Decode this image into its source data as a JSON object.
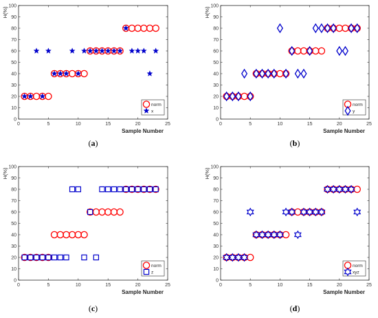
{
  "chart_data": [
    {
      "type": "scatter",
      "caption_letter": "a",
      "xlabel": "Sample Number",
      "ylabel": "H(%)",
      "xlim": [
        0,
        25
      ],
      "ylim": [
        0,
        100
      ],
      "xticks": [
        0,
        5,
        10,
        15,
        20,
        25
      ],
      "yticks": [
        0,
        10,
        20,
        30,
        40,
        50,
        60,
        70,
        80,
        90,
        100
      ],
      "legend_position": "bottom-right",
      "grid": false,
      "series": [
        {
          "name": "norm",
          "marker": "circle",
          "color": "#ff0000",
          "x": [
            1,
            2,
            3,
            4,
            5,
            6,
            7,
            8,
            9,
            10,
            11,
            12,
            13,
            14,
            15,
            16,
            17,
            18,
            19,
            20,
            21,
            22,
            23
          ],
          "y": [
            20,
            20,
            20,
            20,
            20,
            40,
            40,
            40,
            40,
            40,
            40,
            60,
            60,
            60,
            60,
            60,
            60,
            80,
            80,
            80,
            80,
            80,
            80
          ]
        },
        {
          "name": "x",
          "marker": "star",
          "color": "#0000cc",
          "x": [
            1,
            2,
            3,
            4,
            5,
            6,
            7,
            8,
            9,
            10,
            11,
            12,
            13,
            14,
            15,
            16,
            17,
            18,
            19,
            20,
            21,
            22,
            23
          ],
          "y": [
            20,
            20,
            60,
            20,
            60,
            40,
            40,
            40,
            60,
            40,
            60,
            60,
            60,
            60,
            60,
            60,
            60,
            80,
            60,
            60,
            60,
            40,
            60
          ]
        }
      ]
    },
    {
      "type": "scatter",
      "caption_letter": "b",
      "xlabel": "Sample Number",
      "ylabel": "H(%)",
      "xlim": [
        0,
        25
      ],
      "ylim": [
        0,
        100
      ],
      "xticks": [
        0,
        5,
        10,
        15,
        20,
        25
      ],
      "yticks": [
        0,
        10,
        20,
        30,
        40,
        50,
        60,
        70,
        80,
        90,
        100
      ],
      "legend_position": "bottom-right",
      "grid": false,
      "series": [
        {
          "name": "norm",
          "marker": "circle",
          "color": "#ff0000",
          "x": [
            1,
            2,
            3,
            4,
            5,
            6,
            7,
            8,
            9,
            10,
            11,
            12,
            13,
            14,
            15,
            16,
            17,
            18,
            19,
            20,
            21,
            22,
            23
          ],
          "y": [
            20,
            20,
            20,
            20,
            20,
            40,
            40,
            40,
            40,
            40,
            40,
            60,
            60,
            60,
            60,
            60,
            60,
            80,
            80,
            80,
            80,
            80,
            80
          ]
        },
        {
          "name": "y",
          "marker": "diamond",
          "color": "#0000cc",
          "x": [
            1,
            2,
            3,
            4,
            5,
            6,
            7,
            8,
            9,
            10,
            11,
            12,
            13,
            14,
            15,
            16,
            17,
            18,
            19,
            20,
            21,
            22,
            23
          ],
          "y": [
            20,
            20,
            20,
            40,
            20,
            40,
            40,
            40,
            40,
            80,
            40,
            60,
            40,
            40,
            60,
            80,
            80,
            80,
            80,
            60,
            60,
            80,
            80
          ]
        }
      ]
    },
    {
      "type": "scatter",
      "caption_letter": "c",
      "xlabel": "Sample Number",
      "ylabel": "H(%)",
      "xlim": [
        0,
        25
      ],
      "ylim": [
        0,
        100
      ],
      "xticks": [
        0,
        5,
        10,
        15,
        20,
        25
      ],
      "yticks": [
        0,
        10,
        20,
        30,
        40,
        50,
        60,
        70,
        80,
        90,
        100
      ],
      "legend_position": "bottom-right",
      "grid": false,
      "series": [
        {
          "name": "norm",
          "marker": "circle",
          "color": "#ff0000",
          "x": [
            1,
            2,
            3,
            4,
            5,
            6,
            7,
            8,
            9,
            10,
            11,
            12,
            13,
            14,
            15,
            16,
            17,
            18,
            19,
            20,
            21,
            22,
            23
          ],
          "y": [
            20,
            20,
            20,
            20,
            20,
            40,
            40,
            40,
            40,
            40,
            40,
            60,
            60,
            60,
            60,
            60,
            60,
            80,
            80,
            80,
            80,
            80,
            80
          ]
        },
        {
          "name": "z",
          "marker": "square",
          "color": "#0000cc",
          "x": [
            1,
            2,
            3,
            4,
            5,
            6,
            7,
            8,
            9,
            10,
            11,
            12,
            13,
            14,
            15,
            16,
            17,
            18,
            19,
            20,
            21,
            22,
            23
          ],
          "y": [
            20,
            20,
            20,
            20,
            20,
            20,
            20,
            20,
            80,
            80,
            20,
            60,
            20,
            80,
            80,
            80,
            80,
            80,
            80,
            80,
            80,
            80,
            80
          ]
        }
      ]
    },
    {
      "type": "scatter",
      "caption_letter": "d",
      "xlabel": "Sample Number",
      "ylabel": "H(%)",
      "xlim": [
        0,
        25
      ],
      "ylim": [
        0,
        100
      ],
      "xticks": [
        0,
        5,
        10,
        15,
        20,
        25
      ],
      "yticks": [
        0,
        10,
        20,
        30,
        40,
        50,
        60,
        70,
        80,
        90,
        100
      ],
      "legend_position": "bottom-right",
      "grid": false,
      "series": [
        {
          "name": "norm",
          "marker": "circle",
          "color": "#ff0000",
          "x": [
            1,
            2,
            3,
            4,
            5,
            6,
            7,
            8,
            9,
            10,
            11,
            12,
            13,
            14,
            15,
            16,
            17,
            18,
            19,
            20,
            21,
            22,
            23
          ],
          "y": [
            20,
            20,
            20,
            20,
            20,
            40,
            40,
            40,
            40,
            40,
            40,
            60,
            60,
            60,
            60,
            60,
            60,
            80,
            80,
            80,
            80,
            80,
            80
          ]
        },
        {
          "name": "xyz",
          "marker": "hexagram",
          "color": "#0000cc",
          "x": [
            1,
            2,
            3,
            4,
            5,
            6,
            7,
            8,
            9,
            10,
            11,
            12,
            13,
            14,
            15,
            16,
            17,
            18,
            19,
            20,
            21,
            22,
            23
          ],
          "y": [
            20,
            20,
            20,
            20,
            60,
            40,
            40,
            40,
            40,
            40,
            60,
            60,
            40,
            60,
            60,
            60,
            60,
            80,
            80,
            80,
            80,
            80,
            60
          ]
        }
      ]
    }
  ]
}
